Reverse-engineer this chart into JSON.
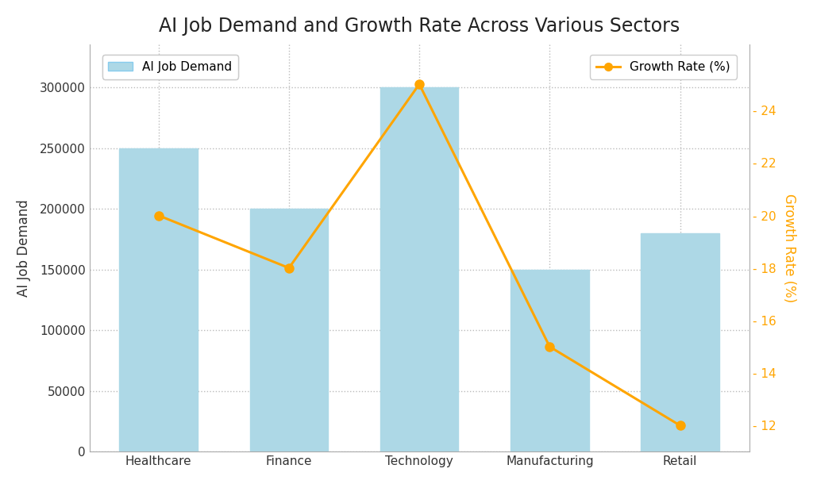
{
  "title": "AI Job Demand and Growth Rate Across Various Sectors",
  "sectors": [
    "Healthcare",
    "Finance",
    "Technology",
    "Manufacturing",
    "Retail"
  ],
  "ai_job_demand": [
    250000,
    200000,
    300000,
    150000,
    180000
  ],
  "growth_rate": [
    20,
    18,
    25,
    15,
    12
  ],
  "bar_color": "#add8e6",
  "bar_edgecolor": "#add8e6",
  "line_color": "#FFA500",
  "line_marker": "o",
  "line_marker_facecolor": "#FFA500",
  "ylabel_left": "AI Job Demand",
  "ylabel_right": "Growth Rate (%)",
  "legend_bar_label": "AI Job Demand",
  "legend_line_label": "Growth Rate (%)",
  "ylim_left": [
    0,
    335000
  ],
  "ylim_right": [
    11,
    26.5
  ],
  "yticks_left": [
    0,
    50000,
    100000,
    150000,
    200000,
    250000,
    300000
  ],
  "yticks_right": [
    12,
    14,
    16,
    18,
    20,
    22,
    24
  ],
  "background_color": "#ffffff",
  "plot_bg_color": "#ffffff",
  "grid_color": "#bbbbbb",
  "title_fontsize": 17,
  "axis_label_fontsize": 12,
  "tick_fontsize": 11,
  "legend_fontsize": 11
}
